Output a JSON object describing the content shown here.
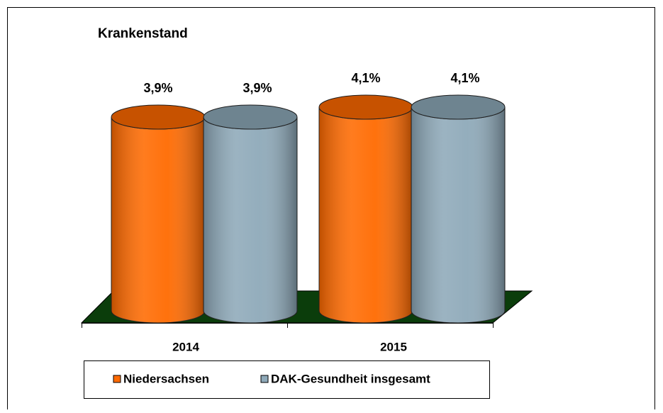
{
  "chart_data": {
    "type": "bar",
    "title": "Krankenstand",
    "categories": [
      "2014",
      "2015"
    ],
    "series": [
      {
        "name": "Niedersachsen",
        "color": "#ff6a00",
        "values": [
          3.9,
          4.1
        ],
        "value_labels": [
          "3,9%",
          "4,1%"
        ]
      },
      {
        "name": "DAK-Gesundheit insgesamt",
        "color": "#8ea9b9",
        "values": [
          3.9,
          4.1
        ],
        "value_labels": [
          "3,9%",
          "4,1%"
        ]
      }
    ],
    "legend": "bottom"
  }
}
